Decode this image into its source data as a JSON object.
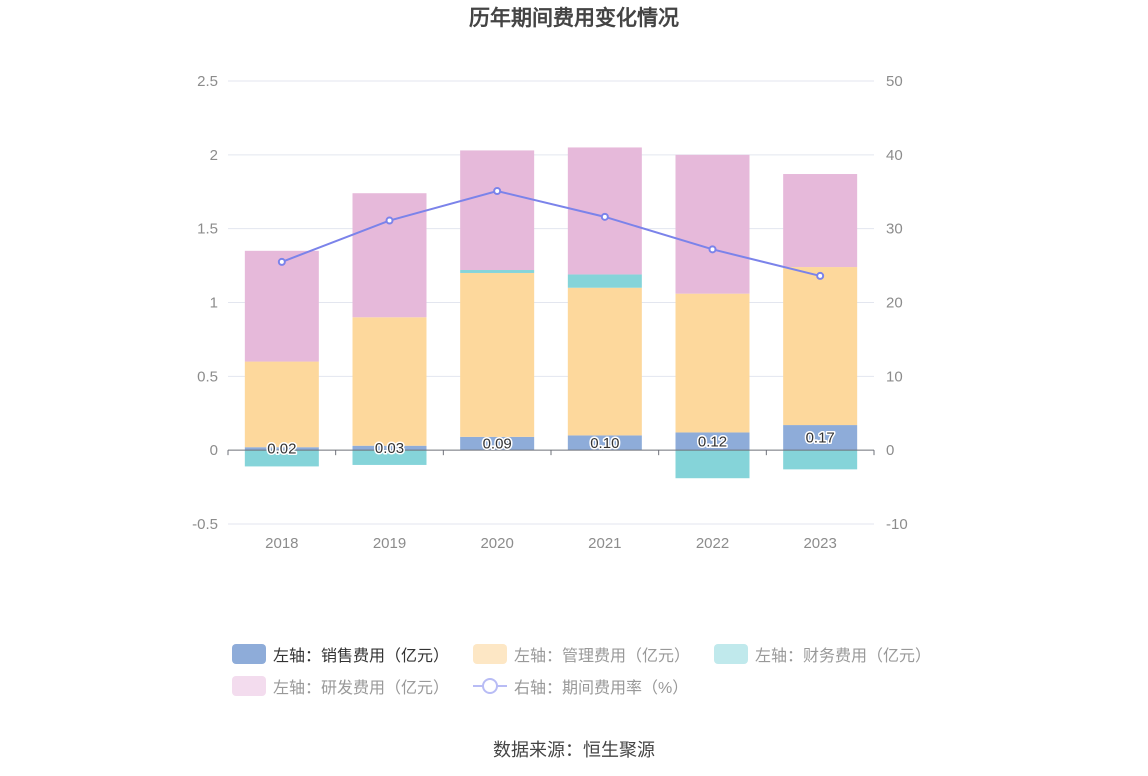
{
  "chart_data": {
    "type": "bar",
    "title": "历年期间费用变化情况",
    "categories": [
      "2018",
      "2019",
      "2020",
      "2021",
      "2022",
      "2023"
    ],
    "left_axis": {
      "ylim": [
        -0.5,
        2.5
      ],
      "ticks": [
        "-0.5",
        "0",
        "0.5",
        "1",
        "1.5",
        "2",
        "2.5"
      ]
    },
    "right_axis": {
      "ylim": [
        -10,
        50
      ],
      "ticks": [
        "-10",
        "0",
        "10",
        "20",
        "30",
        "40",
        "50"
      ]
    },
    "series": [
      {
        "name": "左轴：销售费用（亿元）",
        "type": "bar",
        "axis": "left",
        "color": "#8eacd9",
        "values": [
          0.02,
          0.03,
          0.09,
          0.1,
          0.12,
          0.17
        ],
        "labels": [
          "0.02",
          "0.03",
          "0.09",
          "0.10",
          "0.12",
          "0.17"
        ]
      },
      {
        "name": "左轴：管理费用（亿元）",
        "type": "bar",
        "axis": "left",
        "color": "#fdd89c",
        "values": [
          0.58,
          0.87,
          1.11,
          1.0,
          0.94,
          1.07
        ]
      },
      {
        "name": "左轴：财务费用（亿元）",
        "type": "bar",
        "axis": "left",
        "color": "#85d4d9",
        "values": [
          -0.11,
          -0.1,
          0.02,
          0.09,
          -0.19,
          -0.13
        ]
      },
      {
        "name": "左轴：研发费用（亿元）",
        "type": "bar",
        "axis": "left",
        "color": "#e6b9da",
        "values": [
          0.75,
          0.84,
          0.81,
          0.86,
          0.94,
          0.63
        ]
      },
      {
        "name": "右轴：期间费用率（%）",
        "type": "line",
        "axis": "right",
        "color": "#7b83ea",
        "values": [
          25.5,
          31.1,
          35.1,
          31.6,
          27.2,
          23.6
        ]
      }
    ],
    "grid": true,
    "legend_position": "bottom"
  },
  "legend": [
    {
      "label": "左轴：销售费用（亿元）",
      "color": "#8eacd9",
      "active": true
    },
    {
      "label": "左轴：管理费用（亿元）",
      "color": "#fde7c5",
      "active": false
    },
    {
      "label": "左轴：财务费用（亿元）",
      "color": "#c0e9ec",
      "active": false
    },
    {
      "label": "左轴：研发费用（亿元）",
      "color": "#f3dcee",
      "active": false
    },
    {
      "label": "右轴：期间费用率（%）",
      "color": "#b8bcf5",
      "active": false,
      "line": true
    }
  ],
  "source": "数据来源：恒生聚源"
}
